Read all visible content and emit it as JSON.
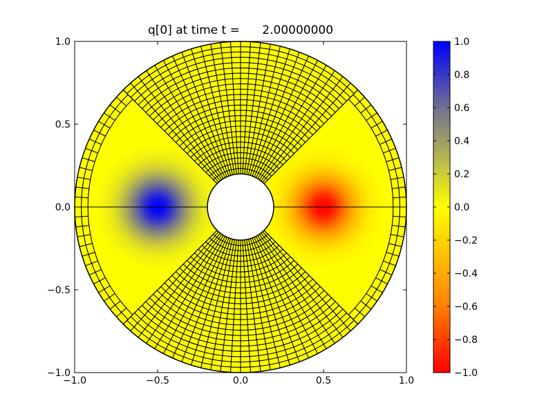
{
  "chart_data": {
    "type": "heatmap",
    "title": "q[0] at time t =      2.00000000",
    "xlabel": "",
    "ylabel": "",
    "xlim": [
      -1.0,
      1.0
    ],
    "ylim": [
      -1.0,
      1.0
    ],
    "x_ticks": [
      "−1.0",
      "−0.5",
      "0.0",
      "0.5",
      "1.0"
    ],
    "y_ticks": [
      "−1.0",
      "−0.5",
      "0.0",
      "0.5",
      "1.0"
    ],
    "grid": false,
    "domain": {
      "shape": "annulus",
      "inner_radius": 0.2,
      "outer_radius": 1.0,
      "coarse_outer_radius": 0.92
    },
    "features": [
      {
        "center": [
          -0.5,
          0.0
        ],
        "value": 1.0,
        "width": 0.13
      },
      {
        "center": [
          0.5,
          0.0
        ],
        "value": -1.0,
        "width": 0.13
      }
    ],
    "background_value": 0.0,
    "colorbar": {
      "range": [
        -1.0,
        1.0
      ],
      "ticks": [
        "1.0",
        "0.8",
        "0.6",
        "0.4",
        "0.2",
        "0.0",
        "−0.2",
        "−0.4",
        "−0.6",
        "−0.8",
        "−1.0"
      ],
      "colors": [
        {
          "value": -1.0,
          "color": "#ff0000"
        },
        {
          "value": -0.6,
          "color": "#ff8000"
        },
        {
          "value": 0.0,
          "color": "#ffff00"
        },
        {
          "value": 0.35,
          "color": "#a8a860"
        },
        {
          "value": 0.6,
          "color": "#707090"
        },
        {
          "value": 1.0,
          "color": "#0000ff"
        }
      ]
    }
  }
}
